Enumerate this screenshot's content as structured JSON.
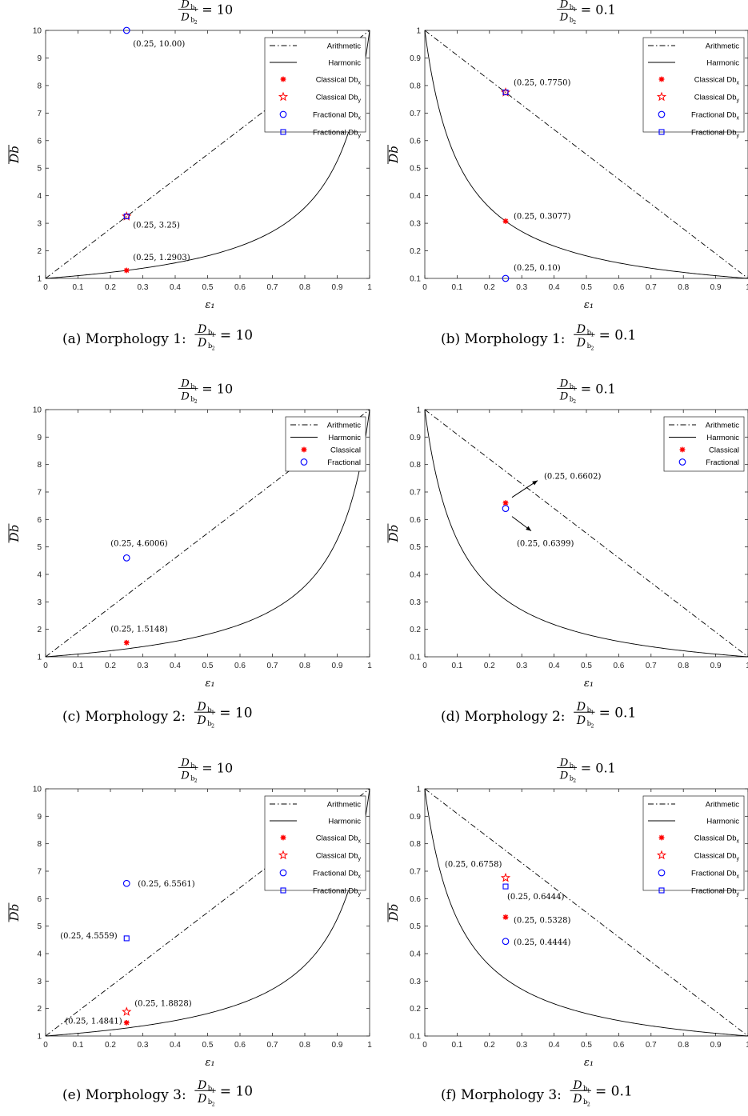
{
  "figure": {
    "charts": [
      {
        "id": "a",
        "caption_prefix": "(a) Morphology 1:",
        "caption_value": "= 10",
        "title_value": "= 10",
        "xlabel": "ε₁",
        "ylabel": "Db",
        "ylim": [
          1,
          10
        ],
        "yticks": [
          "1",
          "2",
          "3",
          "4",
          "5",
          "6",
          "7",
          "8",
          "9",
          "10"
        ],
        "legend": [
          "Arithmetic",
          "Harmonic",
          "Classical Dbx",
          "Classical Dby",
          "Fractional Dbx",
          "Fractional Dby"
        ],
        "annotations": [
          "(0.25, 10.00)",
          "(0.25, 3.25)",
          "(0.25, 1.2903)"
        ]
      },
      {
        "id": "b",
        "caption_prefix": "(b) Morphology 1:",
        "caption_value": "= 0.1",
        "title_value": "= 0.1",
        "xlabel": "ε₁",
        "ylabel": "Db",
        "ylim": [
          0.1,
          1
        ],
        "yticks": [
          "0.1",
          "0.2",
          "0.3",
          "0.4",
          "0.5",
          "0.6",
          "0.7",
          "0.8",
          "0.9",
          "1"
        ],
        "legend": [
          "Arithmetic",
          "Harmonic",
          "Classical Dbx",
          "Classical Dby",
          "Fractional Dbx",
          "Fractional Dby"
        ],
        "annotations": [
          "(0.25, 0.7750)",
          "(0.25, 0.3077)",
          "(0.25, 0.10)"
        ]
      },
      {
        "id": "c",
        "caption_prefix": "(c) Morphology 2:",
        "caption_value": "= 10",
        "title_value": "= 10",
        "xlabel": "ε₁",
        "ylabel": "Db",
        "ylim": [
          1,
          10
        ],
        "yticks": [
          "1",
          "2",
          "3",
          "4",
          "5",
          "6",
          "7",
          "8",
          "9",
          "10"
        ],
        "legend": [
          "Arithmetic",
          "Harmonic",
          "Classical",
          "Fractional"
        ],
        "annotations": [
          "(0.25, 4.6006)",
          "(0.25, 1.5148)"
        ]
      },
      {
        "id": "d",
        "caption_prefix": "(d) Morphology 2:",
        "caption_value": "= 0.1",
        "title_value": "= 0.1",
        "xlabel": "ε₁",
        "ylabel": "Db",
        "ylim": [
          0.1,
          1
        ],
        "yticks": [
          "0.1",
          "0.2",
          "0.3",
          "0.4",
          "0.5",
          "0.6",
          "0.7",
          "0.8",
          "0.9",
          "1"
        ],
        "legend": [
          "Arithmetic",
          "Harmonic",
          "Classical",
          "Fractional"
        ],
        "annotations": [
          "(0.25, 0.6602)",
          "(0.25, 0.6399)"
        ]
      },
      {
        "id": "e",
        "caption_prefix": "(e) Morphology 3:",
        "caption_value": "= 10",
        "title_value": "= 10",
        "xlabel": "ε₁",
        "ylabel": "Db",
        "ylim": [
          1,
          10
        ],
        "yticks": [
          "1",
          "2",
          "3",
          "4",
          "5",
          "6",
          "7",
          "8",
          "9",
          "10"
        ],
        "legend": [
          "Arithmetic",
          "Harmonic",
          "Classical Dbx",
          "Classical Dby",
          "Fractional Dbx",
          "Fractional Dby"
        ],
        "annotations": [
          "(0.25, 6.5561)",
          "(0.25, 4.5559)",
          "(0.25, 1.8828)",
          "(0.25, 1.4841)"
        ]
      },
      {
        "id": "f",
        "caption_prefix": "(f) Morphology 3:",
        "caption_value": "= 0.1",
        "title_value": "= 0.1",
        "xlabel": "ε₁",
        "ylabel": "Db",
        "ylim": [
          0.1,
          1
        ],
        "yticks": [
          "0.1",
          "0.2",
          "0.3",
          "0.4",
          "0.5",
          "0.6",
          "0.7",
          "0.8",
          "0.9",
          "1"
        ],
        "legend": [
          "Arithmetic",
          "Harmonic",
          "Classical Dbx",
          "Classical Dby",
          "Fractional Dbx",
          "Fractional Dby"
        ],
        "annotations": [
          "(0.25, 0.6758)",
          "(0.25, 0.6444)",
          "(0.25, 0.5328)",
          "(0.25, 0.4444)"
        ]
      }
    ],
    "xticks": [
      "0",
      "0.1",
      "0.2",
      "0.3",
      "0.4",
      "0.5",
      "0.6",
      "0.7",
      "0.8",
      "0.9",
      "1"
    ],
    "colors": {
      "classical": "#ff0000",
      "fractional": "#0000ff",
      "curve": "#000000"
    }
  },
  "chart_data": [
    {
      "type": "line",
      "title": "Db1/Db2 = 10",
      "xlabel": "ε₁",
      "ylabel": "Db",
      "xlim": [
        0,
        1
      ],
      "ylim": [
        1,
        10
      ],
      "series": [
        {
          "name": "Arithmetic",
          "function": "1 + 9*x"
        },
        {
          "name": "Harmonic",
          "function": "10 / (10 - 9*x)"
        },
        {
          "name": "Classical Dbx",
          "x": [
            0.25
          ],
          "y": [
            1.2903
          ]
        },
        {
          "name": "Classical Dby",
          "x": [
            0.25
          ],
          "y": [
            3.25
          ]
        },
        {
          "name": "Fractional Dbx",
          "x": [
            0.25
          ],
          "y": [
            10.0
          ]
        },
        {
          "name": "Fractional Dby",
          "x": [
            0.25
          ],
          "y": [
            3.25
          ]
        }
      ],
      "legend_position": "top-right",
      "grid": false
    },
    {
      "type": "line",
      "title": "Db1/Db2 = 0.1",
      "xlabel": "ε₁",
      "ylabel": "Db",
      "xlim": [
        0,
        1
      ],
      "ylim": [
        0.1,
        1
      ],
      "series": [
        {
          "name": "Arithmetic",
          "function": "1 - 0.9*x"
        },
        {
          "name": "Harmonic",
          "function": "0.1 / (0.1 + 0.9*x)"
        },
        {
          "name": "Classical Dbx",
          "x": [
            0.25
          ],
          "y": [
            0.3077
          ]
        },
        {
          "name": "Classical Dby",
          "x": [
            0.25
          ],
          "y": [
            0.775
          ]
        },
        {
          "name": "Fractional Dbx",
          "x": [
            0.25
          ],
          "y": [
            0.1
          ]
        },
        {
          "name": "Fractional Dby",
          "x": [
            0.25
          ],
          "y": [
            0.775
          ]
        }
      ],
      "legend_position": "top-right",
      "grid": false
    },
    {
      "type": "line",
      "title": "Db1/Db2 = 10",
      "xlabel": "ε₁",
      "ylabel": "Db",
      "xlim": [
        0,
        1
      ],
      "ylim": [
        1,
        10
      ],
      "series": [
        {
          "name": "Arithmetic",
          "function": "1 + 9*x"
        },
        {
          "name": "Harmonic",
          "function": "10 / (10 - 9*x)"
        },
        {
          "name": "Classical",
          "x": [
            0.25
          ],
          "y": [
            1.5148
          ]
        },
        {
          "name": "Fractional",
          "x": [
            0.25
          ],
          "y": [
            4.6006
          ]
        }
      ],
      "legend_position": "top-right",
      "grid": false
    },
    {
      "type": "line",
      "title": "Db1/Db2 = 0.1",
      "xlabel": "ε₁",
      "ylabel": "Db",
      "xlim": [
        0,
        1
      ],
      "ylim": [
        0.1,
        1
      ],
      "series": [
        {
          "name": "Arithmetic",
          "function": "1 - 0.9*x"
        },
        {
          "name": "Harmonic",
          "function": "0.1 / (0.1 + 0.9*x)"
        },
        {
          "name": "Classical",
          "x": [
            0.25
          ],
          "y": [
            0.6602
          ]
        },
        {
          "name": "Fractional",
          "x": [
            0.25
          ],
          "y": [
            0.6399
          ]
        }
      ],
      "legend_position": "top-right",
      "grid": false
    },
    {
      "type": "line",
      "title": "Db1/Db2 = 10",
      "xlabel": "ε₁",
      "ylabel": "Db",
      "xlim": [
        0,
        1
      ],
      "ylim": [
        1,
        10
      ],
      "series": [
        {
          "name": "Arithmetic",
          "function": "1 + 9*x"
        },
        {
          "name": "Harmonic",
          "function": "10 / (10 - 9*x)"
        },
        {
          "name": "Classical Dbx",
          "x": [
            0.25
          ],
          "y": [
            1.4841
          ]
        },
        {
          "name": "Classical Dby",
          "x": [
            0.25
          ],
          "y": [
            1.8828
          ]
        },
        {
          "name": "Fractional Dbx",
          "x": [
            0.25
          ],
          "y": [
            6.5561
          ]
        },
        {
          "name": "Fractional Dby",
          "x": [
            0.25
          ],
          "y": [
            4.5559
          ]
        }
      ],
      "legend_position": "top-right",
      "grid": false
    },
    {
      "type": "line",
      "title": "Db1/Db2 = 0.1",
      "xlabel": "ε₁",
      "ylabel": "Db",
      "xlim": [
        0,
        1
      ],
      "ylim": [
        0.1,
        1
      ],
      "series": [
        {
          "name": "Arithmetic",
          "function": "1 - 0.9*x"
        },
        {
          "name": "Harmonic",
          "function": "0.1 / (0.1 + 0.9*x)"
        },
        {
          "name": "Classical Dbx",
          "x": [
            0.25
          ],
          "y": [
            0.5328
          ]
        },
        {
          "name": "Classical Dby",
          "x": [
            0.25
          ],
          "y": [
            0.6758
          ]
        },
        {
          "name": "Fractional Dbx",
          "x": [
            0.25
          ],
          "y": [
            0.4444
          ]
        },
        {
          "name": "Fractional Dby",
          "x": [
            0.25
          ],
          "y": [
            0.6444
          ]
        }
      ],
      "legend_position": "top-right",
      "grid": false
    }
  ]
}
